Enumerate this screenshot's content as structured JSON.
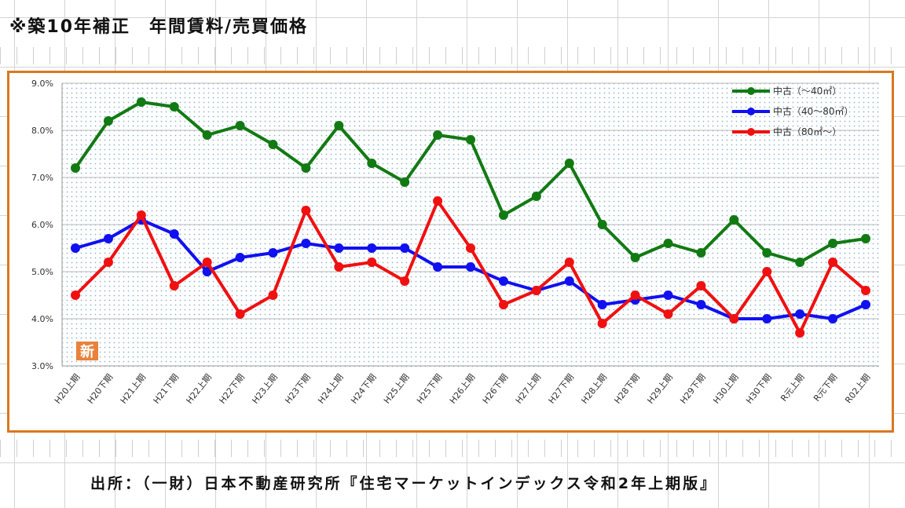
{
  "title": "※築10年補正　年間賃料/売買価格",
  "source": "出所：（一財）日本不動産研究所『住宅マーケットインデックス令和2年上期版』",
  "badge": "新",
  "colors": {
    "frame": "#d9781f",
    "badge": "#e8823c",
    "series": [
      "#127a12",
      "#1010f0",
      "#f01010"
    ]
  },
  "chart_data": {
    "type": "line",
    "categories": [
      "H20上期",
      "H20下期",
      "H21上期",
      "H21下期",
      "H22上期",
      "H22下期",
      "H23上期",
      "H23下期",
      "H24上期",
      "H24下期",
      "H25上期",
      "H25下期",
      "H26上期",
      "H26下期",
      "H27上期",
      "H27下期",
      "H28上期",
      "H28下期",
      "H29上期",
      "H29下期",
      "H30上期",
      "H30下期",
      "R元上期",
      "R元下期",
      "R02上期"
    ],
    "y_ticks": [
      "9.0%",
      "8.0%",
      "7.0%",
      "6.0%",
      "5.0%",
      "4.0%",
      "3.0%"
    ],
    "ylim": [
      3.0,
      9.0
    ],
    "grid": true,
    "legend_position": "top-right",
    "series": [
      {
        "name": "中古（～40㎡）",
        "values": [
          7.2,
          8.2,
          8.6,
          8.5,
          7.9,
          8.1,
          7.7,
          7.2,
          8.1,
          7.3,
          6.9,
          7.9,
          7.8,
          6.2,
          6.6,
          7.3,
          6.0,
          5.3,
          5.6,
          5.4,
          6.1,
          5.4,
          5.2,
          5.6,
          5.7
        ]
      },
      {
        "name": "中古（40～80㎡）",
        "values": [
          5.5,
          5.7,
          6.1,
          5.8,
          5.0,
          5.3,
          5.4,
          5.6,
          5.5,
          5.5,
          5.5,
          5.1,
          5.1,
          4.8,
          4.6,
          4.8,
          4.3,
          4.4,
          4.5,
          4.3,
          4.0,
          4.0,
          4.1,
          4.0,
          4.3
        ]
      },
      {
        "name": "中古（80㎡～）",
        "values": [
          4.5,
          5.2,
          6.2,
          4.7,
          5.2,
          4.1,
          4.5,
          6.3,
          5.1,
          5.2,
          4.8,
          6.5,
          5.5,
          4.3,
          4.6,
          5.2,
          3.9,
          4.5,
          4.1,
          4.7,
          4.0,
          5.0,
          3.7,
          5.2,
          4.6
        ]
      }
    ]
  }
}
